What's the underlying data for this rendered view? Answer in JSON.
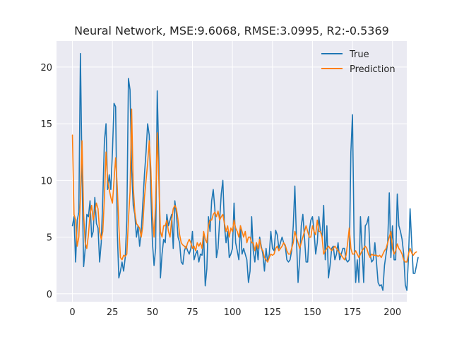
{
  "chart_data": {
    "type": "line",
    "title": "Neural Network, MSE:9.6068, RMSE:3.0995, R2:-0.5369",
    "xlabel": "",
    "ylabel": "",
    "xlim": [
      -9.95,
      208.95
    ],
    "ylim": [
      -0.7,
      22.3
    ],
    "xticks": [
      0,
      25,
      50,
      75,
      100,
      125,
      150,
      175,
      200
    ],
    "yticks": [
      0,
      5,
      10,
      15,
      20
    ],
    "grid": true,
    "legend": "top-right",
    "background": "#eaeaf2",
    "colors": {
      "True": "#1f77b4",
      "Prediction": "#ff7f0e"
    },
    "series": [
      {
        "name": "True",
        "color": "#1f77b4",
        "y": [
          6.0,
          6.8,
          2.8,
          6.5,
          7.2,
          21.2,
          10.5,
          2.4,
          4.0,
          7.0,
          6.8,
          8.2,
          5.0,
          5.5,
          8.5,
          6.2,
          5.8,
          2.8,
          4.5,
          8.5,
          13.5,
          15.0,
          9.2,
          10.5,
          9.2,
          12.5,
          16.8,
          16.5,
          5.6,
          1.4,
          2.0,
          2.8,
          2.0,
          3.2,
          6.5,
          19.0,
          18.0,
          11.0,
          7.8,
          7.0,
          5.0,
          6.0,
          4.2,
          5.5,
          8.0,
          10.5,
          12.5,
          15.0,
          14.0,
          9.0,
          4.5,
          2.5,
          4.0,
          17.9,
          12.0,
          1.4,
          3.5,
          4.8,
          4.5,
          7.0,
          6.0,
          6.5,
          7.0,
          4.0,
          8.2,
          7.0,
          5.0,
          4.5,
          2.8,
          2.6,
          3.8,
          4.2,
          3.8,
          3.5,
          4.0,
          5.5,
          3.0,
          3.5,
          3.8,
          2.8,
          3.5,
          3.4,
          5.2,
          0.7,
          2.2,
          6.8,
          5.5,
          8.2,
          9.2,
          7.5,
          3.2,
          4.0,
          6.5,
          8.8,
          10.0,
          6.0,
          4.5,
          5.5,
          3.2,
          3.5,
          4.0,
          8.0,
          4.5,
          3.8,
          3.0,
          6.0,
          3.5,
          4.0,
          3.5,
          3.0,
          1.0,
          2.0,
          6.8,
          3.8,
          2.8,
          4.5,
          3.0,
          5.0,
          4.2,
          3.5,
          2.0,
          4.0,
          2.8,
          3.5,
          5.5,
          4.0,
          3.8,
          5.6,
          5.2,
          4.0,
          4.5,
          5.0,
          4.5,
          4.2,
          3.0,
          2.8,
          3.0,
          3.8,
          6.0,
          9.5,
          4.8,
          1.0,
          3.0,
          6.0,
          7.0,
          5.0,
          2.8,
          2.8,
          5.5,
          6.5,
          6.8,
          5.5,
          3.5,
          4.5,
          6.8,
          5.5,
          5.0,
          7.8,
          3.0,
          6.0,
          1.4,
          2.5,
          4.0,
          4.2,
          3.0,
          3.5,
          4.5,
          3.0,
          3.5,
          4.0,
          4.0,
          3.0,
          2.8,
          3.0,
          12.5,
          15.8,
          5.0,
          1.0,
          3.0,
          1.0,
          6.8,
          4.0,
          1.0,
          6.0,
          6.2,
          6.8,
          3.5,
          2.8,
          3.0,
          4.5,
          2.8,
          1.0,
          0.7,
          0.8,
          0.3,
          2.5,
          3.5,
          4.5,
          8.9,
          3.2,
          6.0,
          3.0,
          3.0,
          8.8,
          6.0,
          5.5,
          4.8,
          3.5,
          0.8,
          0.3,
          3.2,
          7.5,
          4.5,
          1.8,
          1.8,
          2.5,
          3.2
        ]
      },
      {
        "name": "Prediction",
        "color": "#ff7f0e",
        "y": [
          14.0,
          7.0,
          6.5,
          4.2,
          5.0,
          8.5,
          13.5,
          7.0,
          4.5,
          4.0,
          5.2,
          7.0,
          7.8,
          6.5,
          7.2,
          8.0,
          7.5,
          5.5,
          4.8,
          5.5,
          8.5,
          12.5,
          10.0,
          9.2,
          8.5,
          8.0,
          10.0,
          12.0,
          9.5,
          6.0,
          3.2,
          3.0,
          3.4,
          3.3,
          3.5,
          6.5,
          9.0,
          16.3,
          9.5,
          7.2,
          6.2,
          6.0,
          5.8,
          5.0,
          6.0,
          8.5,
          10.0,
          11.5,
          13.5,
          11.0,
          7.0,
          5.0,
          8.0,
          14.2,
          10.0,
          5.5,
          5.0,
          6.0,
          6.0,
          6.5,
          5.5,
          5.0,
          6.5,
          7.5,
          7.8,
          7.5,
          6.5,
          5.2,
          4.5,
          4.3,
          4.2,
          4.0,
          4.5,
          4.8,
          4.5,
          4.0,
          4.2,
          3.8,
          4.5,
          4.2,
          4.5,
          4.0,
          5.5,
          4.8,
          4.5,
          6.0,
          6.5,
          6.5,
          7.0,
          7.2,
          6.8,
          7.3,
          6.5,
          6.8,
          7.0,
          6.2,
          5.5,
          6.0,
          5.0,
          5.8,
          5.5,
          6.5,
          5.8,
          5.5,
          5.0,
          6.0,
          5.5,
          5.0,
          5.5,
          4.5,
          5.0,
          5.0,
          4.5,
          4.5,
          3.8,
          4.5,
          4.0,
          4.8,
          4.0,
          3.8,
          3.2,
          3.0,
          2.8,
          3.2,
          3.5,
          3.4,
          3.5,
          4.0,
          4.2,
          3.8,
          4.0,
          4.2,
          4.5,
          4.3,
          3.8,
          3.5,
          3.5,
          4.0,
          4.5,
          5.5,
          5.0,
          4.5,
          4.0,
          4.5,
          5.0,
          5.5,
          6.0,
          5.5,
          5.0,
          5.0,
          6.0,
          5.5,
          5.2,
          6.5,
          5.5,
          5.5,
          5.0,
          3.5,
          3.8,
          4.0,
          4.2,
          4.0,
          3.8,
          4.0,
          4.2,
          4.0,
          3.8,
          3.6,
          3.4,
          3.2,
          3.0,
          3.4,
          4.5,
          5.8,
          4.0,
          3.5,
          3.5,
          3.8,
          3.5,
          3.2,
          3.5,
          3.8,
          4.0,
          4.2,
          4.0,
          3.5,
          3.2,
          3.5,
          3.4,
          3.4,
          3.4,
          3.3,
          3.4,
          3.2,
          3.5,
          3.8,
          4.0,
          4.5,
          5.0,
          5.5,
          4.0,
          3.5,
          3.8,
          4.4,
          4.0,
          3.8,
          3.5,
          3.0,
          2.8,
          2.8,
          3.5,
          4.0,
          3.6,
          3.4,
          3.6,
          3.7
        ]
      }
    ]
  }
}
